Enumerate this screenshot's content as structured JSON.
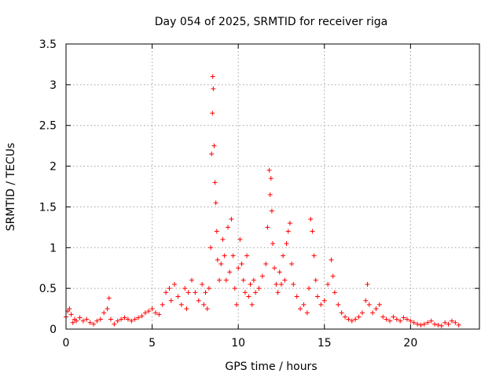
{
  "chart_data": {
    "type": "scatter",
    "title": "Day 054 of 2025, SRMTID for receiver riga",
    "xlabel": "GPS time / hours",
    "ylabel": "SRMTID / TECUs",
    "xlim": [
      0,
      24
    ],
    "ylim": [
      0,
      3.5
    ],
    "xticks": [
      0,
      5,
      10,
      15,
      20
    ],
    "xtick_labels": [
      "0",
      "5",
      "10",
      "15",
      "20"
    ],
    "yticks": [
      0,
      0.5,
      1,
      1.5,
      2,
      2.5,
      3,
      3.5
    ],
    "ytick_labels": [
      "0",
      "0.5",
      "1",
      "1.5",
      "2",
      "2.5",
      "3",
      "3.5"
    ],
    "grid": true,
    "marker": "+",
    "color": "#ff0000",
    "series": [
      {
        "name": "SRMTID",
        "points": [
          [
            0.0,
            0.15
          ],
          [
            0.1,
            0.22
          ],
          [
            0.2,
            0.25
          ],
          [
            0.3,
            0.18
          ],
          [
            0.4,
            0.08
          ],
          [
            0.5,
            0.12
          ],
          [
            0.6,
            0.1
          ],
          [
            0.8,
            0.14
          ],
          [
            1.0,
            0.1
          ],
          [
            1.2,
            0.12
          ],
          [
            1.4,
            0.08
          ],
          [
            1.6,
            0.06
          ],
          [
            1.8,
            0.1
          ],
          [
            2.0,
            0.12
          ],
          [
            2.2,
            0.2
          ],
          [
            2.4,
            0.25
          ],
          [
            2.5,
            0.38
          ],
          [
            2.6,
            0.12
          ],
          [
            2.8,
            0.06
          ],
          [
            3.0,
            0.1
          ],
          [
            3.2,
            0.12
          ],
          [
            3.4,
            0.14
          ],
          [
            3.6,
            0.12
          ],
          [
            3.8,
            0.1
          ],
          [
            4.0,
            0.12
          ],
          [
            4.2,
            0.14
          ],
          [
            4.4,
            0.16
          ],
          [
            4.6,
            0.2
          ],
          [
            4.8,
            0.22
          ],
          [
            5.0,
            0.25
          ],
          [
            5.2,
            0.2
          ],
          [
            5.4,
            0.18
          ],
          [
            5.6,
            0.3
          ],
          [
            5.8,
            0.45
          ],
          [
            6.0,
            0.5
          ],
          [
            6.1,
            0.35
          ],
          [
            6.3,
            0.55
          ],
          [
            6.5,
            0.4
          ],
          [
            6.7,
            0.3
          ],
          [
            6.9,
            0.5
          ],
          [
            7.0,
            0.25
          ],
          [
            7.1,
            0.45
          ],
          [
            7.3,
            0.6
          ],
          [
            7.5,
            0.45
          ],
          [
            7.7,
            0.35
          ],
          [
            7.9,
            0.55
          ],
          [
            8.0,
            0.3
          ],
          [
            8.1,
            0.45
          ],
          [
            8.2,
            0.25
          ],
          [
            8.3,
            0.5
          ],
          [
            8.4,
            1.0
          ],
          [
            8.45,
            2.15
          ],
          [
            8.5,
            2.65
          ],
          [
            8.52,
            3.1
          ],
          [
            8.55,
            2.95
          ],
          [
            8.6,
            2.25
          ],
          [
            8.65,
            1.8
          ],
          [
            8.7,
            1.55
          ],
          [
            8.75,
            1.2
          ],
          [
            8.8,
            0.85
          ],
          [
            8.9,
            0.6
          ],
          [
            9.0,
            0.8
          ],
          [
            9.1,
            1.1
          ],
          [
            9.2,
            0.9
          ],
          [
            9.3,
            0.6
          ],
          [
            9.4,
            1.25
          ],
          [
            9.5,
            0.7
          ],
          [
            9.6,
            1.35
          ],
          [
            9.7,
            0.9
          ],
          [
            9.8,
            0.5
          ],
          [
            9.9,
            0.3
          ],
          [
            10.0,
            0.75
          ],
          [
            10.1,
            1.1
          ],
          [
            10.2,
            0.8
          ],
          [
            10.3,
            0.6
          ],
          [
            10.4,
            0.45
          ],
          [
            10.5,
            0.9
          ],
          [
            10.6,
            0.4
          ],
          [
            10.7,
            0.55
          ],
          [
            10.8,
            0.3
          ],
          [
            10.9,
            0.6
          ],
          [
            11.0,
            0.45
          ],
          [
            11.2,
            0.5
          ],
          [
            11.4,
            0.65
          ],
          [
            11.6,
            0.8
          ],
          [
            11.7,
            1.25
          ],
          [
            11.8,
            1.95
          ],
          [
            11.85,
            1.65
          ],
          [
            11.9,
            1.85
          ],
          [
            11.95,
            1.45
          ],
          [
            12.0,
            1.05
          ],
          [
            12.1,
            0.75
          ],
          [
            12.2,
            0.55
          ],
          [
            12.3,
            0.45
          ],
          [
            12.4,
            0.7
          ],
          [
            12.5,
            0.55
          ],
          [
            12.6,
            0.9
          ],
          [
            12.7,
            0.6
          ],
          [
            12.8,
            1.05
          ],
          [
            12.9,
            1.2
          ],
          [
            13.0,
            1.3
          ],
          [
            13.1,
            0.8
          ],
          [
            13.2,
            0.55
          ],
          [
            13.4,
            0.4
          ],
          [
            13.6,
            0.25
          ],
          [
            13.8,
            0.3
          ],
          [
            14.0,
            0.2
          ],
          [
            14.1,
            0.5
          ],
          [
            14.2,
            1.35
          ],
          [
            14.3,
            1.2
          ],
          [
            14.4,
            0.9
          ],
          [
            14.5,
            0.6
          ],
          [
            14.6,
            0.4
          ],
          [
            14.8,
            0.3
          ],
          [
            15.0,
            0.35
          ],
          [
            15.2,
            0.55
          ],
          [
            15.4,
            0.85
          ],
          [
            15.5,
            0.65
          ],
          [
            15.6,
            0.45
          ],
          [
            15.8,
            0.3
          ],
          [
            16.0,
            0.2
          ],
          [
            16.2,
            0.15
          ],
          [
            16.4,
            0.12
          ],
          [
            16.6,
            0.1
          ],
          [
            16.8,
            0.12
          ],
          [
            17.0,
            0.15
          ],
          [
            17.2,
            0.2
          ],
          [
            17.4,
            0.35
          ],
          [
            17.5,
            0.55
          ],
          [
            17.6,
            0.3
          ],
          [
            17.8,
            0.2
          ],
          [
            18.0,
            0.25
          ],
          [
            18.2,
            0.3
          ],
          [
            18.4,
            0.15
          ],
          [
            18.6,
            0.12
          ],
          [
            18.8,
            0.1
          ],
          [
            19.0,
            0.15
          ],
          [
            19.2,
            0.12
          ],
          [
            19.4,
            0.1
          ],
          [
            19.6,
            0.14
          ],
          [
            19.8,
            0.12
          ],
          [
            20.0,
            0.1
          ],
          [
            20.2,
            0.08
          ],
          [
            20.4,
            0.06
          ],
          [
            20.6,
            0.05
          ],
          [
            20.8,
            0.06
          ],
          [
            21.0,
            0.08
          ],
          [
            21.2,
            0.1
          ],
          [
            21.4,
            0.06
          ],
          [
            21.6,
            0.05
          ],
          [
            21.8,
            0.04
          ],
          [
            22.0,
            0.08
          ],
          [
            22.2,
            0.06
          ],
          [
            22.4,
            0.1
          ],
          [
            22.6,
            0.08
          ],
          [
            22.8,
            0.05
          ]
        ]
      }
    ]
  }
}
